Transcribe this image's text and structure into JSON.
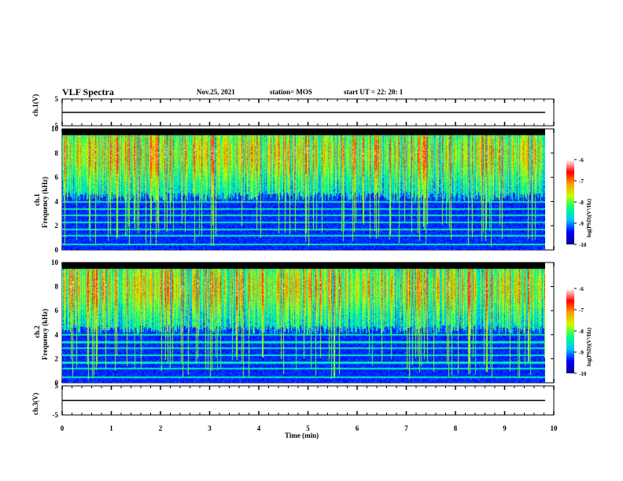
{
  "header": {
    "title": "VLF Spectra",
    "date": "Nov.25, 2021",
    "station": "station= MOS",
    "start": "start  UT =   22: 20: 1"
  },
  "colors": {
    "background": "#000000",
    "colormap": [
      "#00008b",
      "#0000ff",
      "#00c8ff",
      "#00ff80",
      "#c8ff00",
      "#ffa000",
      "#ff0000",
      "#ffffff"
    ]
  },
  "chart_data": [
    {
      "type": "line",
      "panel": "ch1 waveform",
      "ylabel": "ch.1(V)",
      "ylim": [
        -5,
        5
      ],
      "yticks": [
        "5",
        "-5"
      ],
      "x": [
        0,
        10
      ],
      "values": [
        0,
        0
      ]
    },
    {
      "type": "heatmap",
      "panel": "ch1 spectrogram",
      "ylabel_top": "ch.1",
      "ylabel": "Frequency (kHz)",
      "ylim": [
        0,
        10
      ],
      "yticks": [
        "0",
        "2",
        "4",
        "6",
        "8",
        "10"
      ],
      "xlim": [
        0,
        10
      ],
      "main_band_khz": [
        4,
        9.5
      ],
      "colorbar": {
        "label": "log(PSD)(V²/Hz)",
        "ticks": [
          "-6",
          "-7",
          "-8",
          "-9",
          "-10"
        ],
        "range": [
          -10,
          -6
        ]
      }
    },
    {
      "type": "heatmap",
      "panel": "ch2 spectrogram",
      "ylabel_top": "ch.2",
      "ylabel": "Frequency (kHz)",
      "ylim": [
        0,
        10
      ],
      "yticks": [
        "0",
        "2",
        "4",
        "6",
        "8",
        "10"
      ],
      "xlim": [
        0,
        10
      ],
      "main_band_khz": [
        4,
        9.5
      ],
      "colorbar": {
        "label": "log(PSD)(V²/Hz)",
        "ticks": [
          "-6",
          "-7",
          "-8",
          "-9",
          "-10"
        ],
        "range": [
          -10,
          -6
        ]
      }
    },
    {
      "type": "line",
      "panel": "ch3 waveform",
      "ylabel": "ch.3(V)",
      "ylim": [
        -5,
        5
      ],
      "yticks": [
        "5",
        "-5"
      ],
      "x": [
        0,
        10
      ],
      "values": [
        0,
        0
      ]
    }
  ],
  "xaxis": {
    "label": "Time  (min)",
    "ticks": [
      "0",
      "1",
      "2",
      "3",
      "4",
      "5",
      "6",
      "7",
      "8",
      "9",
      "10"
    ]
  }
}
